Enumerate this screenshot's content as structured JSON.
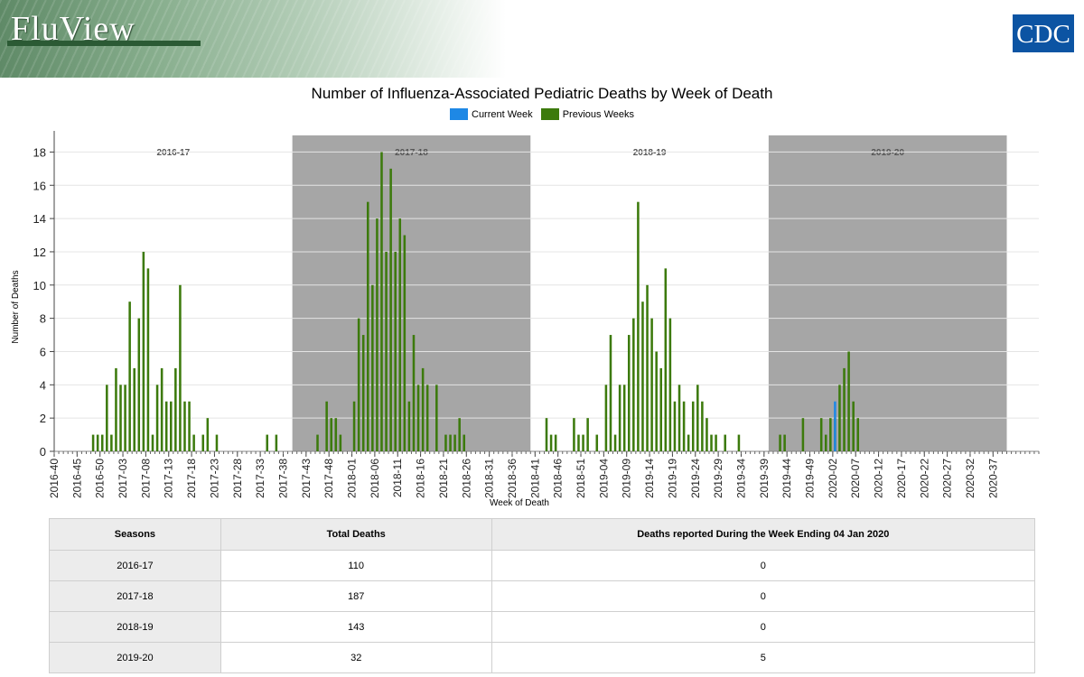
{
  "header": {
    "logo_text": "FluView",
    "agency_logo_text": "CDC"
  },
  "chart_data": {
    "type": "bar",
    "title": "Number of Influenza-Associated Pediatric Deaths by Week of Death",
    "xlabel": "Week of Death",
    "ylabel": "Number of Deaths",
    "ylim": [
      0,
      19
    ],
    "yticks": [
      0,
      2,
      4,
      6,
      8,
      10,
      12,
      14,
      16,
      18
    ],
    "grid": true,
    "legend_placement": "top-center",
    "legend": [
      {
        "name": "Current Week",
        "color": "#1e88e5"
      },
      {
        "name": "Previous Weeks",
        "color": "#3c7a0c"
      }
    ],
    "season_bands": [
      {
        "label": "2016-17",
        "shaded": false
      },
      {
        "label": "2017-18",
        "shaded": true
      },
      {
        "label": "2018-19",
        "shaded": false
      },
      {
        "label": "2019-20",
        "shaded": true
      }
    ],
    "weeks_per_season": 52,
    "x_tick_labels": [
      "2016-40",
      "2016-45",
      "2016-50",
      "2017-03",
      "2017-08",
      "2017-13",
      "2017-18",
      "2017-23",
      "2017-28",
      "2017-33",
      "2017-38",
      "2017-43",
      "2017-48",
      "2018-01",
      "2018-06",
      "2018-11",
      "2018-16",
      "2018-21",
      "2018-26",
      "2018-31",
      "2018-36",
      "2018-41",
      "2018-46",
      "2018-51",
      "2019-04",
      "2019-09",
      "2019-14",
      "2019-19",
      "2019-24",
      "2019-29",
      "2019-34",
      "2019-39",
      "2019-44",
      "2019-49",
      "2020-02",
      "2020-07",
      "2020-12",
      "2020-17",
      "2020-22",
      "2020-27",
      "2020-32",
      "2020-37"
    ],
    "series": [
      {
        "name": "Previous Weeks",
        "color": "#3c7a0c",
        "values": [
          0,
          0,
          0,
          0,
          0,
          0,
          0,
          0,
          1,
          1,
          1,
          4,
          1,
          5,
          4,
          4,
          9,
          5,
          8,
          12,
          11,
          1,
          4,
          5,
          3,
          3,
          5,
          10,
          3,
          3,
          1,
          0,
          1,
          2,
          0,
          1,
          0,
          0,
          0,
          0,
          0,
          0,
          0,
          0,
          0,
          0,
          1,
          0,
          1,
          0,
          0,
          0,
          0,
          0,
          0,
          0,
          0,
          1,
          0,
          3,
          2,
          2,
          1,
          0,
          0,
          3,
          8,
          7,
          15,
          10,
          14,
          18,
          12,
          17,
          12,
          14,
          13,
          3,
          7,
          4,
          5,
          4,
          0,
          4,
          0,
          1,
          1,
          1,
          2,
          1,
          0,
          0,
          0,
          0,
          0,
          0,
          0,
          0,
          0,
          0,
          0,
          0,
          0,
          0,
          0,
          0,
          0,
          2,
          1,
          1,
          0,
          0,
          0,
          2,
          1,
          1,
          2,
          0,
          1,
          0,
          4,
          7,
          1,
          4,
          4,
          7,
          8,
          15,
          9,
          10,
          8,
          6,
          5,
          11,
          8,
          3,
          4,
          3,
          1,
          3,
          4,
          3,
          2,
          1,
          1,
          0,
          1,
          0,
          0,
          1,
          0,
          0,
          0,
          0,
          0,
          0,
          0,
          0,
          1,
          1,
          0,
          0,
          0,
          2,
          0,
          0,
          0,
          2,
          1,
          2,
          2,
          4,
          5,
          6,
          3,
          2,
          0,
          0,
          0,
          0,
          0,
          0,
          0,
          0,
          0,
          0,
          0,
          0,
          0,
          0,
          0,
          0,
          0,
          0,
          0,
          0,
          0,
          0,
          0,
          0,
          0,
          0,
          0,
          0,
          0,
          0,
          0,
          0,
          0,
          0,
          0,
          0,
          0,
          0,
          0
        ]
      },
      {
        "name": "Current Week",
        "color": "#1e88e5",
        "index": 170,
        "value": 3
      }
    ]
  },
  "table": {
    "headers": [
      "Seasons",
      "Total Deaths",
      "Deaths reported During the Week Ending 04 Jan 2020"
    ],
    "rows": [
      [
        "2016-17",
        "110",
        "0"
      ],
      [
        "2017-18",
        "187",
        "0"
      ],
      [
        "2018-19",
        "143",
        "0"
      ],
      [
        "2019-20",
        "32",
        "5"
      ]
    ]
  }
}
